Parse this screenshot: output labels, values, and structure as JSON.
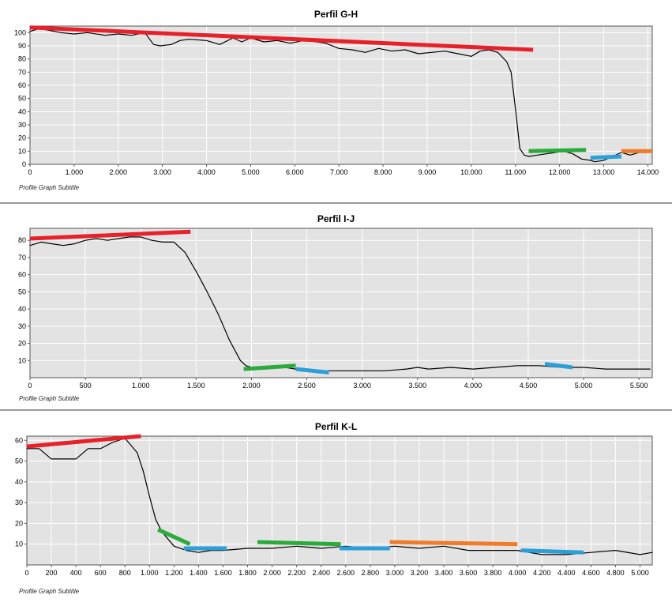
{
  "chart_data": [
    {
      "type": "line",
      "title": "Perfil G-H",
      "subtitle": "Profile Graph Subtitle",
      "xlim": [
        0,
        14100
      ],
      "ylim": [
        0,
        105
      ],
      "xticks": [
        0,
        1000,
        2000,
        3000,
        4000,
        5000,
        6000,
        7000,
        8000,
        9000,
        10000,
        11000,
        12000,
        13000,
        14000
      ],
      "xtick_labels": [
        "0",
        "1.000",
        "2.000",
        "3.000",
        "4.000",
        "5.000",
        "6.000",
        "7.000",
        "8.000",
        "9.000",
        "10.000",
        "11.000",
        "12.000",
        "13.000",
        "14.000"
      ],
      "yticks": [
        0,
        10,
        20,
        30,
        40,
        50,
        60,
        70,
        80,
        90,
        100
      ],
      "ytick_labels": [
        "0",
        "10",
        "20",
        "30",
        "40",
        "50",
        "60",
        "70",
        "80",
        "90",
        "100"
      ],
      "grid": true,
      "series": [
        {
          "color": "#000000",
          "width": 1.2,
          "x": [
            0,
            200,
            400,
            700,
            1000,
            1300,
            1700,
            2000,
            2300,
            2600,
            2800,
            2950,
            3200,
            3400,
            3600,
            4000,
            4300,
            4600,
            4800,
            5000,
            5300,
            5600,
            5900,
            6200,
            6500,
            6700,
            7000,
            7300,
            7600,
            7900,
            8200,
            8500,
            8800,
            9100,
            9400,
            9700,
            10000,
            10200,
            10400,
            10600,
            10800,
            10900,
            11000,
            11100,
            11200,
            11300,
            11500,
            11700,
            11900,
            12100,
            12300,
            12500,
            12700,
            12800,
            13000,
            13200,
            13400,
            13600,
            13800,
            14000
          ],
          "y": [
            101,
            103,
            102,
            100,
            99,
            100,
            98,
            99,
            98,
            100,
            91,
            90,
            91,
            94,
            95,
            94,
            91,
            96,
            93,
            96,
            93,
            94,
            92,
            94,
            93,
            92,
            88,
            87,
            85,
            88,
            86,
            87,
            84,
            85,
            86,
            84,
            82,
            86,
            87,
            85,
            78,
            70,
            42,
            12,
            7,
            6,
            7,
            8,
            9,
            10,
            8,
            4,
            3,
            2,
            3,
            6,
            9,
            7,
            9,
            9
          ]
        },
        {
          "color": "#e8202a",
          "width": 5,
          "x": [
            0,
            11400
          ],
          "y": [
            104,
            87
          ]
        },
        {
          "color": "#2bab3c",
          "width": 5,
          "x": [
            11300,
            12600
          ],
          "y": [
            10,
            11
          ]
        },
        {
          "color": "#2a9fd8",
          "width": 5,
          "x": [
            12700,
            13400
          ],
          "y": [
            5,
            6
          ]
        },
        {
          "color": "#f07c2a",
          "width": 5,
          "x": [
            13400,
            14100
          ],
          "y": [
            10,
            10
          ]
        }
      ]
    },
    {
      "type": "line",
      "title": "Perfil I-J",
      "subtitle": "Profile Graph Subtitle",
      "xlim": [
        0,
        5620
      ],
      "ylim": [
        0,
        87
      ],
      "xticks": [
        0,
        500,
        1000,
        1500,
        2000,
        2500,
        3000,
        3500,
        4000,
        4500,
        5000,
        5500
      ],
      "xtick_labels": [
        "0",
        "500",
        "1.000",
        "1.500",
        "2.000",
        "2.500",
        "3.000",
        "3.500",
        "4.000",
        "4.500",
        "5.000",
        "5.500"
      ],
      "yticks": [
        10,
        20,
        30,
        40,
        50,
        60,
        70,
        80
      ],
      "ytick_labels": [
        "10",
        "20",
        "30",
        "40",
        "50",
        "60",
        "70",
        "80"
      ],
      "grid": true,
      "series": [
        {
          "color": "#000000",
          "width": 1.2,
          "x": [
            0,
            100,
            200,
            300,
            400,
            500,
            600,
            700,
            800,
            900,
            1000,
            1100,
            1200,
            1300,
            1400,
            1500,
            1600,
            1700,
            1800,
            1900,
            1950,
            2000,
            2200,
            2400,
            2600,
            2800,
            3000,
            3200,
            3400,
            3500,
            3600,
            3800,
            4000,
            4200,
            4400,
            4600,
            4800,
            5000,
            5200,
            5400,
            5600
          ],
          "y": [
            77,
            79,
            78,
            77,
            78,
            80,
            81,
            80,
            81,
            82,
            82,
            80,
            79,
            79,
            73,
            62,
            50,
            37,
            22,
            10,
            7,
            6,
            7,
            5,
            4,
            4,
            4,
            4,
            5,
            6,
            5,
            6,
            5,
            6,
            7,
            7,
            6,
            6,
            5,
            5,
            5
          ]
        },
        {
          "color": "#e8202a",
          "width": 5,
          "x": [
            0,
            1450
          ],
          "y": [
            81,
            85
          ]
        },
        {
          "color": "#2bab3c",
          "width": 5,
          "x": [
            1930,
            2400
          ],
          "y": [
            5,
            7
          ]
        },
        {
          "color": "#2a9fd8",
          "width": 5,
          "x": [
            2400,
            2700
          ],
          "y": [
            5,
            3
          ]
        },
        {
          "color": "#2a9fd8",
          "width": 5,
          "x": [
            4650,
            4900
          ],
          "y": [
            8,
            6
          ]
        }
      ]
    },
    {
      "type": "line",
      "title": "Perfil K-L",
      "subtitle": "Profile Graph Subtitle",
      "xlim": [
        0,
        5100
      ],
      "ylim": [
        0,
        62
      ],
      "xticks": [
        0,
        200,
        400,
        600,
        800,
        1000,
        1200,
        1400,
        1600,
        1800,
        2000,
        2200,
        2400,
        2600,
        2800,
        3000,
        3200,
        3400,
        3600,
        3800,
        4000,
        4200,
        4400,
        4600,
        4800,
        5000
      ],
      "xtick_labels": [
        "0",
        "200",
        "400",
        "600",
        "800",
        "1.000",
        "1.200",
        "1.400",
        "1.600",
        "1.800",
        "2.000",
        "2.200",
        "2.400",
        "2.600",
        "2.800",
        "3.000",
        "3.200",
        "3.400",
        "3.600",
        "3.800",
        "4.000",
        "4.200",
        "4.400",
        "4.600",
        "4.800",
        "5.000"
      ],
      "yticks": [
        10,
        20,
        30,
        40,
        50,
        60
      ],
      "ytick_labels": [
        "10",
        "20",
        "30",
        "40",
        "50",
        "60"
      ],
      "grid": true,
      "series": [
        {
          "color": "#000000",
          "width": 1.2,
          "x": [
            0,
            100,
            200,
            300,
            400,
            500,
            600,
            700,
            800,
            900,
            950,
            1000,
            1050,
            1100,
            1200,
            1300,
            1400,
            1500,
            1600,
            1800,
            2000,
            2200,
            2400,
            2600,
            2800,
            3000,
            3200,
            3400,
            3600,
            3800,
            4000,
            4200,
            4400,
            4600,
            4800,
            5000,
            5100
          ],
          "y": [
            56,
            56,
            51,
            51,
            51,
            56,
            56,
            59,
            61,
            54,
            45,
            33,
            22,
            16,
            9,
            7,
            6,
            7,
            7,
            8,
            8,
            9,
            8,
            9,
            8,
            9,
            8,
            9,
            7,
            7,
            7,
            5,
            5,
            6,
            7,
            5,
            6
          ]
        },
        {
          "color": "#e8202a",
          "width": 5,
          "x": [
            0,
            930
          ],
          "y": [
            57,
            62
          ]
        },
        {
          "color": "#2bab3c",
          "width": 5,
          "x": [
            1070,
            1330
          ],
          "y": [
            17,
            10
          ]
        },
        {
          "color": "#2a9fd8",
          "width": 5,
          "x": [
            1280,
            1630
          ],
          "y": [
            8,
            8
          ]
        },
        {
          "color": "#2bab3c",
          "width": 5,
          "x": [
            1880,
            2560
          ],
          "y": [
            11,
            10
          ]
        },
        {
          "color": "#2a9fd8",
          "width": 5,
          "x": [
            2550,
            2960
          ],
          "y": [
            8,
            8
          ]
        },
        {
          "color": "#f07c2a",
          "width": 5,
          "x": [
            2960,
            4000
          ],
          "y": [
            11,
            10
          ]
        },
        {
          "color": "#2a9fd8",
          "width": 5,
          "x": [
            4030,
            4540
          ],
          "y": [
            7,
            6
          ]
        }
      ]
    }
  ]
}
